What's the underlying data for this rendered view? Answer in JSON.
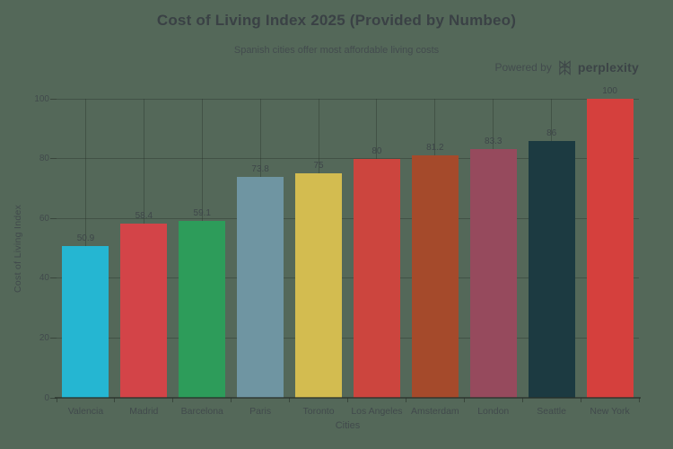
{
  "header": {
    "title": "Cost of Living Index 2025 (Provided by Numbeo)",
    "subtitle": "Spanish cities offer most affordable living costs",
    "powered_by": "Powered by",
    "brand": "perplexity"
  },
  "chart_data": {
    "type": "bar",
    "title": "Cost of Living Index 2025 (Provided by Numbeo)",
    "subtitle": "Spanish cities offer most affordable living costs",
    "xlabel": "Cities",
    "ylabel": "Cost of Living Index",
    "ylim": [
      0,
      100
    ],
    "yticks": [
      0,
      20,
      40,
      60,
      80,
      100
    ],
    "grid": true,
    "legend": "none",
    "categories": [
      "Valencia",
      "Madrid",
      "Barcelona",
      "Paris",
      "Toronto",
      "Los Angeles",
      "Amsterdam",
      "London",
      "Seattle",
      "New York"
    ],
    "values": [
      50.9,
      58.4,
      59.1,
      73.8,
      75,
      80,
      81.2,
      83.3,
      86,
      100
    ],
    "value_labels": [
      "50.9",
      "58.4",
      "59.1",
      "73.8",
      "75",
      "80",
      "81.2",
      "83.3",
      "86",
      "100"
    ],
    "bar_colors": [
      "#25b6d2",
      "#d34448",
      "#2d9c5a",
      "#6f95a2",
      "#d3bc50",
      "#cc453e",
      "#a54a2b",
      "#964a5d",
      "#1c3a41",
      "#d5403d"
    ]
  },
  "colors": {
    "background": "#546859",
    "grid": "#3a463e",
    "text_primary": "#3a4145",
    "text_secondary": "#414a4c"
  }
}
